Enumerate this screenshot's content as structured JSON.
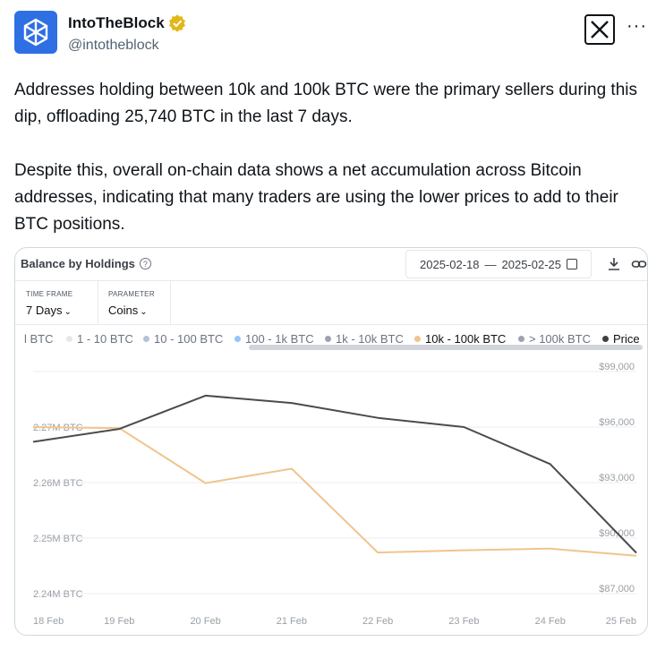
{
  "tweet": {
    "display_name": "IntoTheBlock",
    "handle": "@intotheblock",
    "paragraph1": "Addresses holding between 10k and 100k BTC were the primary sellers during this dip, offloading 25,740 BTC in the last 7 days.",
    "paragraph2": "Despite this, overall on-chain data shows a net accumulation across Bitcoin addresses, indicating that many traders are using the lower prices to add to their BTC positions.",
    "more_label": "···"
  },
  "card": {
    "title": "Balance by Holdings",
    "help_glyph": "?",
    "date_start": "2025-02-18",
    "date_sep": "—",
    "date_end": "2025-02-25",
    "filters": {
      "time_frame_label": "TIME FRAME",
      "time_frame_value": "7 Days",
      "parameter_label": "PARAMETER",
      "parameter_value": "Coins"
    },
    "legend": [
      {
        "label": "l BTC",
        "color": "#ffffff"
      },
      {
        "label": "1 - 10 BTC",
        "color": "#e5e7eb"
      },
      {
        "label": "10 - 100 BTC",
        "color": "#b3c2d6"
      },
      {
        "label": "100 - 1k BTC",
        "color": "#93c5fd"
      },
      {
        "label": "1k - 10k BTC",
        "color": "#9ca3af"
      },
      {
        "label": "10k - 100k BTC",
        "color": "#f0c48e"
      },
      {
        "label": "> 100k BTC",
        "color": "#9ca3af"
      },
      {
        "label": "Price",
        "color": "#4b4b4b"
      }
    ]
  },
  "chart_data": {
    "type": "line",
    "x": [
      "18 Feb",
      "19 Feb",
      "20 Feb",
      "21 Feb",
      "22 Feb",
      "23 Feb",
      "24 Feb",
      "25 Feb"
    ],
    "left_axis": {
      "ticks": [
        "2.24M BTC",
        "2.25M BTC",
        "2.26M BTC",
        "2.27M BTC"
      ],
      "range": [
        2.24,
        2.28
      ]
    },
    "right_axis": {
      "ticks": [
        "$87,000",
        "$90,000",
        "$93,000",
        "$96,000",
        "$99,000"
      ],
      "range": [
        87000,
        99000
      ]
    },
    "series": [
      {
        "name": "10k - 100k BTC",
        "axis": "left",
        "color": "#f0c48e",
        "values": [
          2.27,
          2.2698,
          2.2599,
          2.2625,
          2.2474,
          2.2478,
          2.2481,
          2.2468
        ]
      },
      {
        "name": "Price",
        "axis": "right",
        "color": "#4b4b4b",
        "values": [
          95200,
          95900,
          97700,
          97300,
          96500,
          96000,
          94000,
          89200
        ]
      }
    ]
  }
}
